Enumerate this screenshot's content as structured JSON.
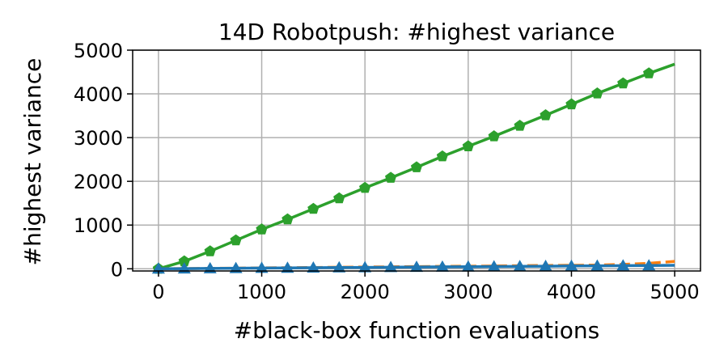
{
  "chart_data": {
    "type": "line",
    "title": "14D Robotpush: #highest variance",
    "xlabel": "#black-box function evaluations",
    "ylabel": "#highest variance",
    "xlim": [
      -250,
      5250
    ],
    "ylim": [
      -50,
      5000
    ],
    "xticks": [
      0,
      1000,
      2000,
      3000,
      4000,
      5000
    ],
    "yticks": [
      0,
      1000,
      2000,
      3000,
      4000,
      5000
    ],
    "grid": true,
    "series": [
      {
        "color": "#2ca02c",
        "line_style": "solid",
        "marker": "pentagon",
        "x": [
          0,
          250,
          500,
          750,
          1000,
          1250,
          1500,
          1750,
          2000,
          2250,
          2500,
          2750,
          3000,
          3250,
          3500,
          3750,
          4000,
          4250,
          4500,
          4750,
          5000
        ],
        "y": [
          0,
          170,
          400,
          650,
          900,
          1130,
          1370,
          1610,
          1850,
          2080,
          2320,
          2570,
          2800,
          3030,
          3270,
          3510,
          3760,
          4010,
          4240,
          4470,
          4680
        ],
        "marker_x": [
          0,
          250,
          500,
          750,
          1000,
          1250,
          1500,
          1750,
          2000,
          2250,
          2500,
          2750,
          3000,
          3250,
          3500,
          3750,
          4000,
          4250,
          4500,
          4750
        ]
      },
      {
        "color": "#ff7f0e",
        "line_style": "dashed",
        "marker": "none",
        "x": [
          0,
          250,
          500,
          750,
          1000,
          1250,
          1500,
          1750,
          2000,
          2250,
          2500,
          2750,
          3000,
          3250,
          3500,
          3750,
          4000,
          4250,
          4500,
          4750,
          5000
        ],
        "y": [
          0,
          5,
          10,
          15,
          20,
          25,
          30,
          35,
          40,
          45,
          50,
          55,
          60,
          65,
          70,
          75,
          80,
          85,
          100,
          125,
          170
        ]
      },
      {
        "color": "#1f77b4",
        "line_style": "solid",
        "marker": "triangle",
        "x": [
          0,
          250,
          500,
          750,
          1000,
          1250,
          1500,
          1750,
          2000,
          2250,
          2500,
          2750,
          3000,
          3250,
          3500,
          3750,
          4000,
          4250,
          4500,
          4750,
          5000
        ],
        "y": [
          0,
          4,
          8,
          12,
          16,
          20,
          24,
          28,
          32,
          36,
          40,
          44,
          48,
          52,
          56,
          60,
          64,
          68,
          72,
          76,
          80
        ],
        "marker_x": [
          0,
          250,
          500,
          750,
          1000,
          1250,
          1500,
          1750,
          2000,
          2250,
          2500,
          2750,
          3000,
          3250,
          3500,
          3750,
          4000,
          4250,
          4500,
          4750
        ]
      }
    ]
  }
}
